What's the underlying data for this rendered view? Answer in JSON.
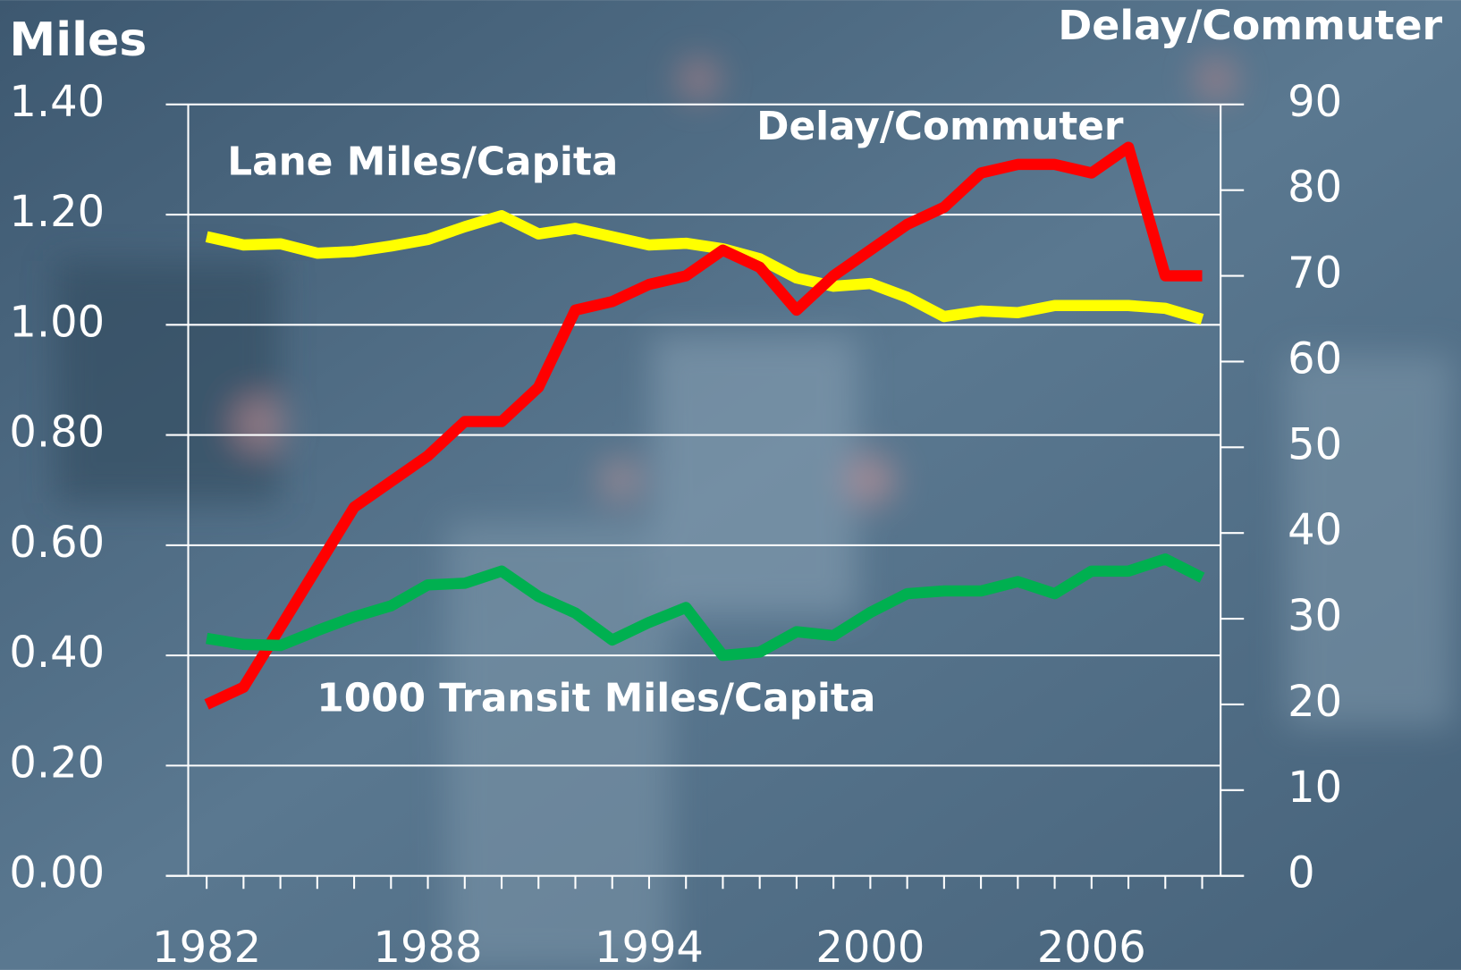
{
  "chart_data": {
    "type": "line",
    "y_label": "Miles",
    "y2_label": "Delay/Commuter",
    "x": [
      1982,
      1983,
      1984,
      1985,
      1986,
      1987,
      1988,
      1989,
      1990,
      1991,
      1992,
      1993,
      1994,
      1995,
      1996,
      1997,
      1998,
      1999,
      2000,
      2001,
      2002,
      2003,
      2004,
      2005,
      2006,
      2007,
      2008,
      2009
    ],
    "xlim": [
      1981.5,
      2009.5
    ],
    "xticks": [
      1982,
      1988,
      1994,
      2000,
      2006
    ],
    "ylim": [
      0,
      1.4
    ],
    "yticks": [
      {
        "value": 0,
        "label": "0.00"
      },
      {
        "value": 0.2,
        "label": "0.20"
      },
      {
        "value": 0.4,
        "label": "0.40"
      },
      {
        "value": 0.6,
        "label": "0.60"
      },
      {
        "value": 0.8,
        "label": "0.80"
      },
      {
        "value": 1.0,
        "label": "1.00"
      },
      {
        "value": 1.2,
        "label": "1.20"
      },
      {
        "value": 1.4,
        "label": "1.40"
      }
    ],
    "y2lim": [
      0,
      90
    ],
    "y2ticks": [
      0,
      10,
      20,
      30,
      40,
      50,
      60,
      70,
      80,
      90
    ],
    "grid": true,
    "series": [
      {
        "name": "Lane Miles/Capita",
        "color": "#ffff00",
        "values": [
          1.16,
          1.145,
          1.147,
          1.13,
          1.133,
          1.143,
          1.155,
          1.178,
          1.198,
          1.165,
          1.175,
          1.16,
          1.145,
          1.148,
          1.138,
          1.12,
          1.085,
          1.07,
          1.075,
          1.05,
          1.015,
          1.025,
          1.022,
          1.035,
          1.035,
          1.035,
          1.03,
          1.01
        ]
      },
      {
        "name": "Delay/Commuter",
        "color": "#ff0000",
        "axis": "y2",
        "values": [
          20,
          22,
          29,
          36,
          43,
          46,
          49,
          53,
          53,
          57,
          66,
          67,
          69,
          70,
          73,
          71,
          66,
          70,
          73,
          76,
          78,
          82,
          83,
          83,
          82,
          85,
          70,
          70
        ]
      },
      {
        "name": "1000 Transit Miles/Capita",
        "color": "#00b050",
        "values": [
          0.431,
          0.42,
          0.418,
          0.445,
          0.47,
          0.49,
          0.528,
          0.531,
          0.553,
          0.507,
          0.477,
          0.428,
          0.46,
          0.487,
          0.4,
          0.406,
          0.443,
          0.436,
          0.478,
          0.512,
          0.517,
          0.517,
          0.534,
          0.512,
          0.553,
          0.553,
          0.575,
          0.541
        ]
      }
    ]
  }
}
